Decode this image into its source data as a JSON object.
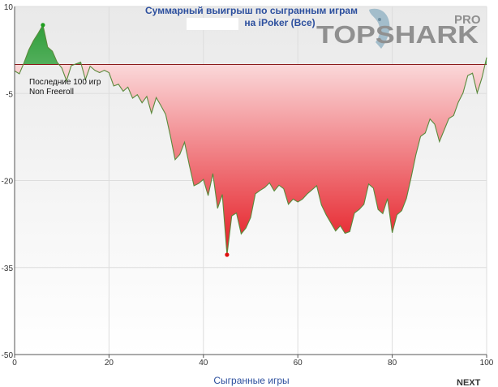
{
  "chart_data": {
    "type": "area",
    "title_line1": "Суммарный выигрыш по сыгранным играм",
    "title_line2": "на iPoker (Все)",
    "xlabel": "Сыгранные игры",
    "ylabel": "",
    "xlim": [
      0,
      100
    ],
    "ylim": [
      -50,
      10
    ],
    "x_ticks": [
      0,
      20,
      40,
      60,
      80,
      100
    ],
    "y_ticks": [
      10,
      -5,
      -20,
      -35,
      -50
    ],
    "x_tick_labels": [
      "0",
      "20",
      "40",
      "60",
      "80",
      "100"
    ],
    "y_tick_labels": [
      "10",
      "-5",
      "-20",
      "-35",
      "-50"
    ],
    "baseline": 0,
    "grid": true,
    "legend": {
      "position": "top-left",
      "lines": [
        "Последние 100 игр",
        "Non Freeroll"
      ]
    },
    "series": [
      {
        "x": [
          0,
          1,
          2,
          3,
          4,
          5,
          6,
          7,
          8,
          9,
          10,
          11,
          12,
          13,
          14,
          15,
          16,
          17,
          18,
          19,
          20,
          21,
          22,
          23,
          24,
          25,
          26,
          27,
          28,
          29,
          30,
          31,
          32,
          33,
          34,
          35,
          36,
          37,
          38,
          39,
          40,
          41,
          42,
          43,
          44,
          45,
          46,
          47,
          48,
          49,
          50,
          51,
          52,
          53,
          54,
          55,
          56,
          57,
          58,
          59,
          60,
          61,
          62,
          63,
          64,
          65,
          66,
          67,
          68,
          69,
          70,
          71,
          72,
          73,
          74,
          75,
          76,
          77,
          78,
          79,
          80,
          81,
          82,
          83,
          84,
          85,
          86,
          87,
          88,
          89,
          90,
          91,
          92,
          93,
          94,
          95,
          96,
          97,
          98,
          99,
          100
        ],
        "y": [
          -1.1,
          -1.6,
          0.3,
          2.5,
          4.1,
          5.4,
          6.8,
          3.0,
          2.3,
          0.4,
          -0.6,
          -2.8,
          -0.2,
          0.1,
          0.4,
          -2.6,
          -0.3,
          -1.0,
          -1.4,
          -1.0,
          -1.4,
          -3.7,
          -3.4,
          -4.6,
          -3.9,
          -5.8,
          -5.2,
          -6.6,
          -5.5,
          -8.4,
          -5.7,
          -7.1,
          -8.6,
          -12.3,
          -16.4,
          -15.5,
          -13.4,
          -17.3,
          -20.9,
          -20.5,
          -19.8,
          -22.6,
          -18.8,
          -24.8,
          -22.4,
          -32.8,
          -26.1,
          -25.6,
          -29.2,
          -28.2,
          -26.4,
          -22.3,
          -21.7,
          -21.2,
          -20.4,
          -21.8,
          -20.8,
          -21.4,
          -24.1,
          -23.2,
          -23.7,
          -23.2,
          -22.3,
          -21.6,
          -20.9,
          -24.2,
          -25.9,
          -27.3,
          -28.7,
          -27.8,
          -29.1,
          -28.8,
          -25.6,
          -25.0,
          -24.1,
          -20.6,
          -21.3,
          -25.0,
          -25.7,
          -23.1,
          -29.0,
          -25.9,
          -25.2,
          -23.1,
          -19.5,
          -15.6,
          -12.4,
          -11.8,
          -9.4,
          -10.3,
          -13.3,
          -11.3,
          -9.3,
          -8.8,
          -6.5,
          -4.9,
          -1.9,
          -1.5,
          -4.9,
          -2.3,
          1.2
        ],
        "color": "#5a8a3c"
      }
    ],
    "markers": [
      {
        "label": "max",
        "x": 6,
        "y": 6.8,
        "color": "#1f9e1f"
      },
      {
        "label": "min",
        "x": 45,
        "y": -32.8,
        "color": "#e01010"
      }
    ]
  },
  "logo": {
    "text": "TOPSHARK",
    "pro": "PRO",
    "color": "#909090"
  },
  "next_label": "NEXT"
}
